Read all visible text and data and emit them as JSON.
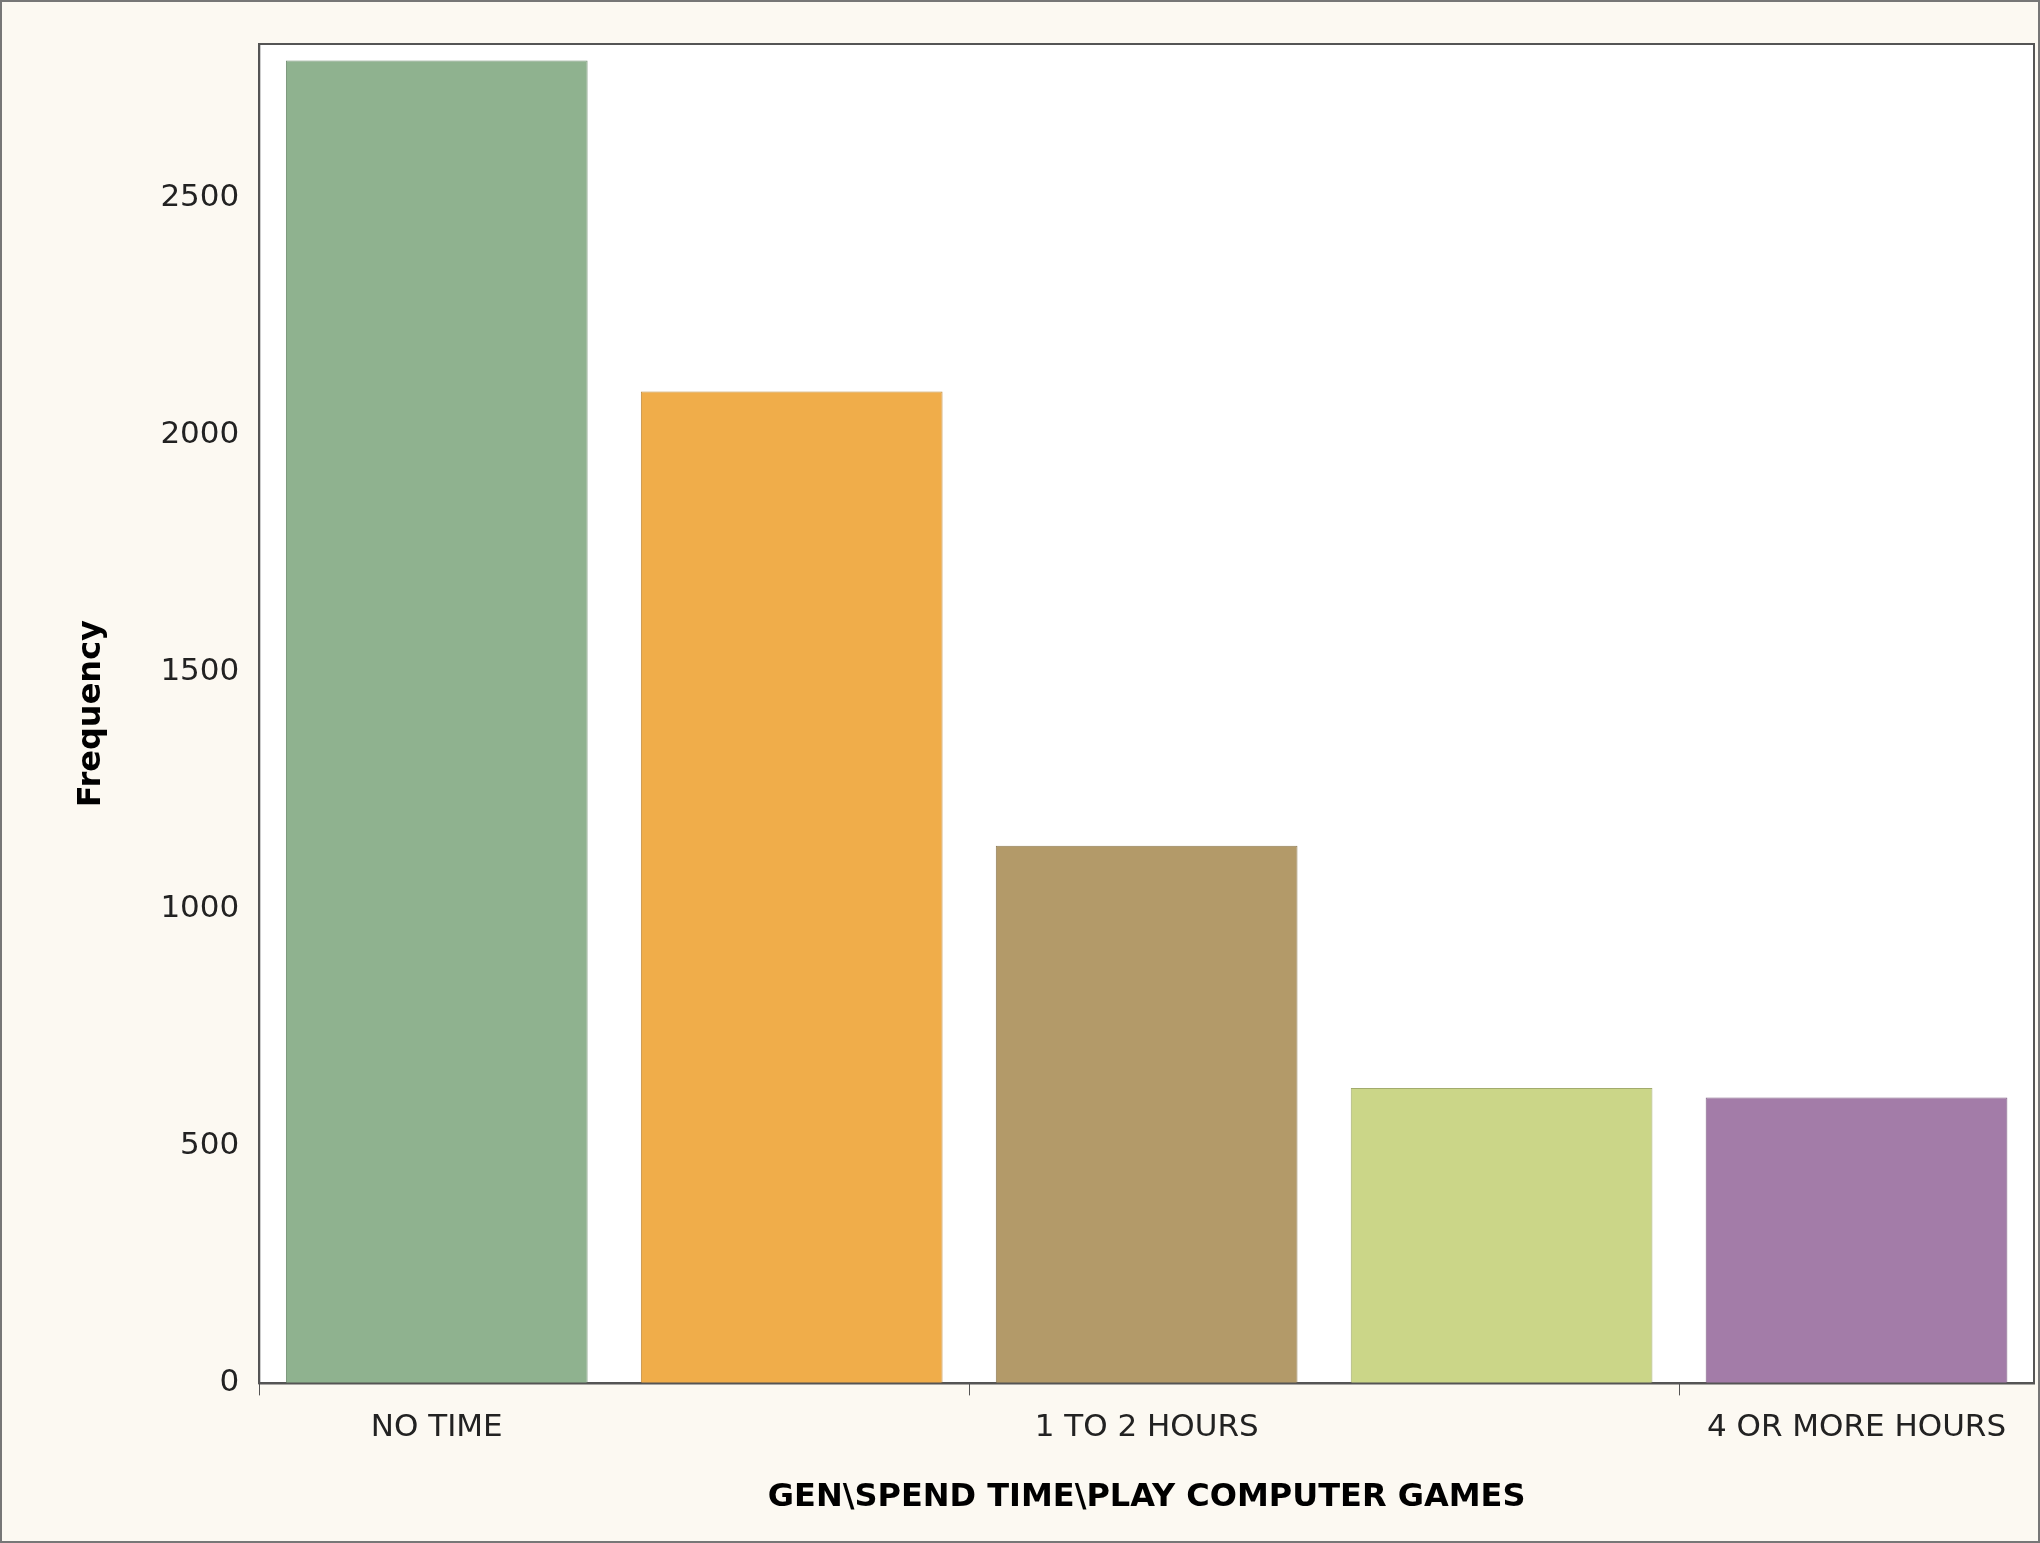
{
  "chart_data": {
    "type": "bar",
    "xlabel": "GEN\\SPEND TIME\\PLAY COMPUTER GAMES",
    "ylabel": "Frequency",
    "categories": [
      "NO TIME",
      null,
      "1 TO 2 HOURS",
      null,
      "4 OR MORE HOURS"
    ],
    "values": [
      2790,
      2092,
      1134,
      623,
      603
    ],
    "colors": [
      "#8fb28f",
      "#f0ad4a",
      "#b39a69",
      "#cbd688",
      "#a37ca8"
    ],
    "ylim": [
      0,
      2825
    ],
    "yticks": [
      0,
      500,
      1000,
      1500,
      2000,
      2500
    ],
    "grid": false,
    "legend": false
  }
}
